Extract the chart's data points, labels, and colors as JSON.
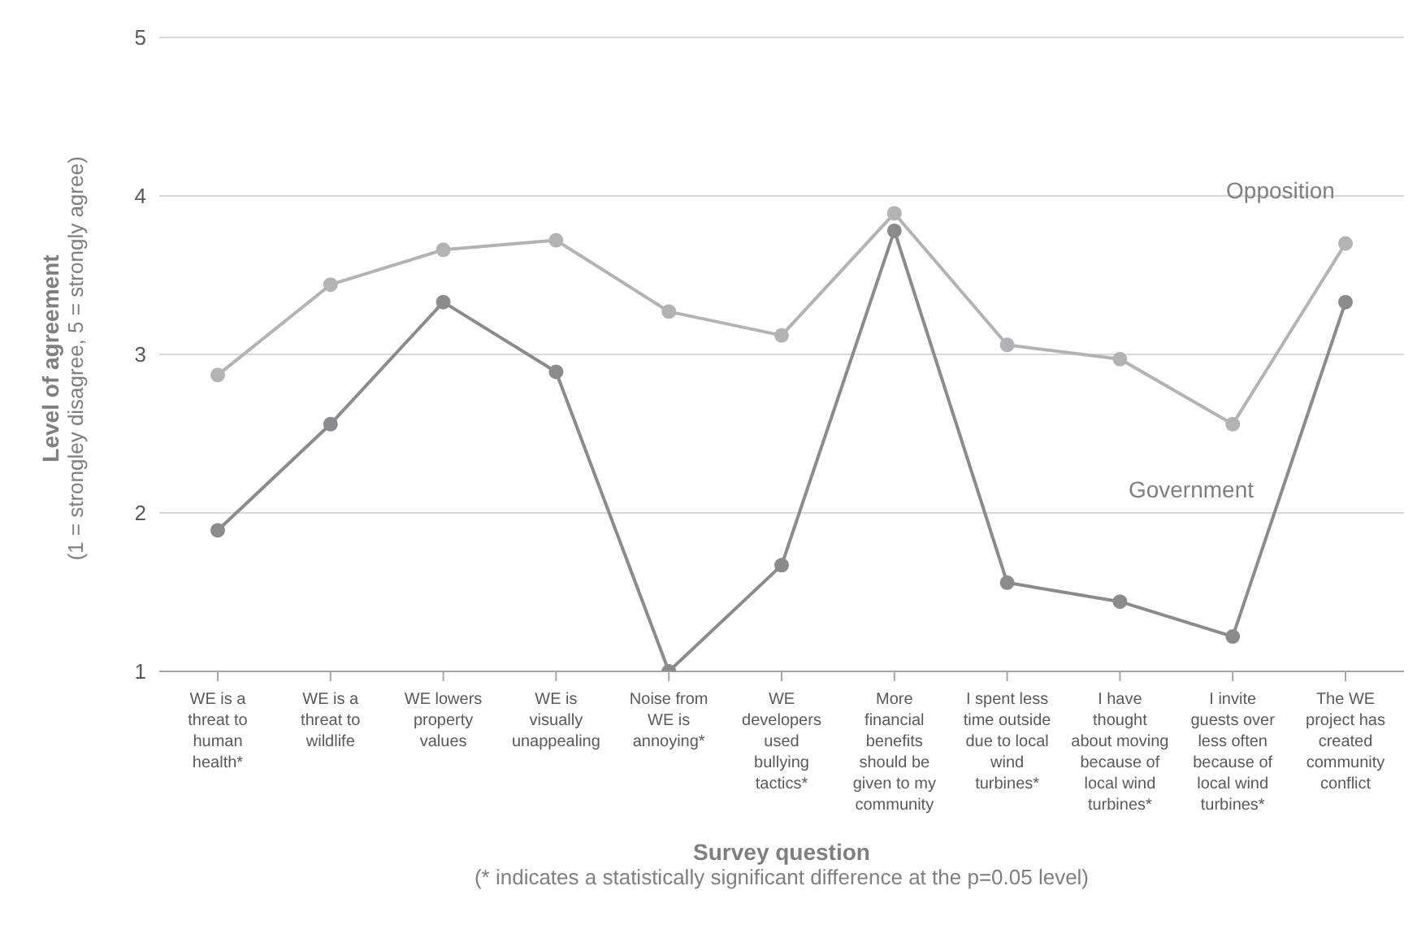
{
  "chart_data": {
    "type": "line",
    "xlabel": "Survey question",
    "ylabel": "Level of agreement",
    "subtitle": "(1 = strongley disagree, 5 = strongly agree)",
    "annotations": [
      "(* indicates a statistically significant difference at the p=0.05 level)"
    ],
    "categories": [
      "WE is a threat to human health*",
      "WE is a threat to wildlife",
      "WE lowers property values",
      "WE is visually unappealing",
      "Noise from WE is annoying*",
      "WE developers used bullying tactics*",
      "More financial benefits should be given to my community",
      "I spent less time outside due to local wind turbines*",
      "I have thought about moving because of local wind turbines*",
      "I invite guests over less often because of local wind turbines*",
      "The WE project has created community conflict"
    ],
    "series": [
      {
        "name": "Opposition",
        "color": "#b3b3b5",
        "values": [
          2.87,
          3.44,
          3.66,
          3.72,
          3.27,
          3.12,
          3.89,
          3.06,
          2.97,
          2.56,
          3.7
        ]
      },
      {
        "name": "Government",
        "color": "#8b8b8d",
        "values": [
          1.89,
          2.56,
          3.33,
          2.89,
          1.0,
          1.67,
          3.78,
          1.56,
          1.44,
          1.22,
          3.33
        ]
      }
    ],
    "ylim": [
      1,
      5
    ],
    "yticks": [
      1,
      2,
      3,
      4,
      5
    ],
    "grid": "y",
    "legend": false,
    "marker": "circle",
    "line_style": "solid"
  }
}
